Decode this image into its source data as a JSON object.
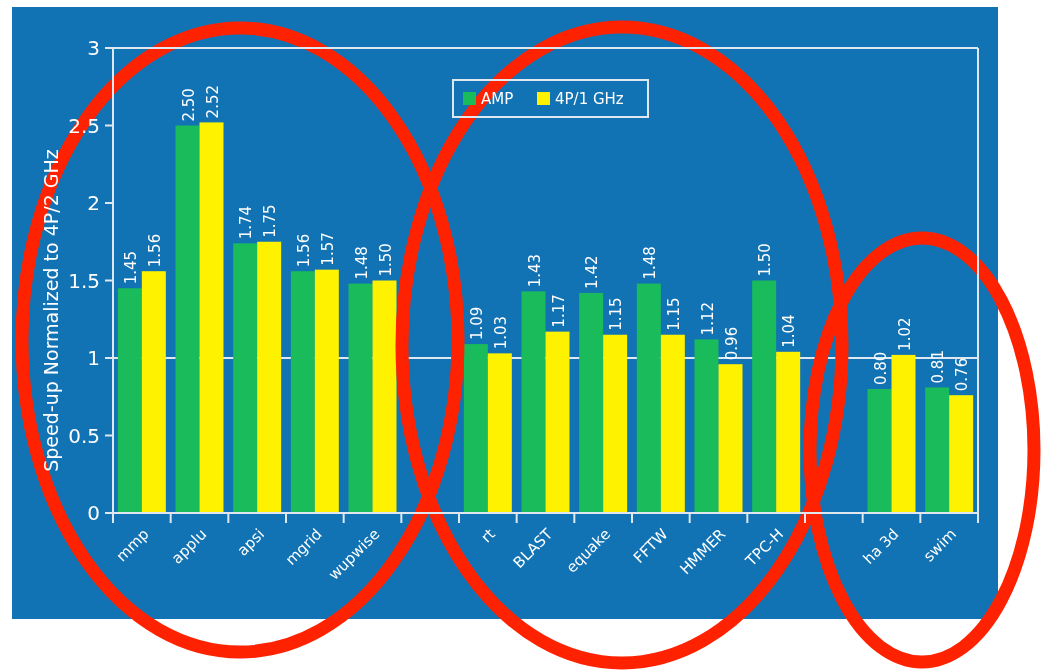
{
  "chart_data": {
    "type": "bar",
    "ylabel": "Speed-up Normalized to 4P/2 GHz",
    "categories": [
      "mmp",
      "applu",
      "apsi",
      "mgrid",
      "wupwise",
      null,
      "rt",
      "BLAST",
      "equake",
      "FFTW",
      "HMMER",
      "TPC-H",
      null,
      "ha 3d",
      "swim"
    ],
    "series": [
      {
        "name": "AMP",
        "color": "#19bb5a",
        "values": [
          1.45,
          2.5,
          1.74,
          1.56,
          1.48,
          null,
          1.09,
          1.43,
          1.42,
          1.48,
          1.12,
          1.5,
          null,
          0.8,
          0.81
        ],
        "value_labels": [
          "1.45",
          "2.50",
          "1.74",
          "1.56",
          "1.48",
          null,
          "1.09",
          "1.43",
          "1.42",
          "1.48",
          "1.12",
          "1.50",
          null,
          "0.80",
          "0.81"
        ]
      },
      {
        "name": "4P/1 GHz",
        "color": "#fff200",
        "values": [
          1.56,
          2.52,
          1.75,
          1.57,
          1.5,
          null,
          1.03,
          1.17,
          1.15,
          1.15,
          0.96,
          1.04,
          null,
          1.02,
          0.76
        ],
        "value_labels": [
          "1.56",
          "2.52",
          "1.75",
          "1.57",
          "1.50",
          null,
          "1.03",
          "1.17",
          "1.15",
          "1.15",
          "0.96",
          "1.04",
          null,
          "1.02",
          "0.76"
        ]
      }
    ],
    "ylim": [
      0,
      3
    ],
    "yticks": [
      0,
      0.5,
      1,
      1.5,
      2,
      2.5,
      3
    ],
    "ref_lines": [
      {
        "axis": "y",
        "value": 1,
        "color": "#dfe8f0"
      }
    ],
    "grid": false,
    "legend": "top"
  }
}
